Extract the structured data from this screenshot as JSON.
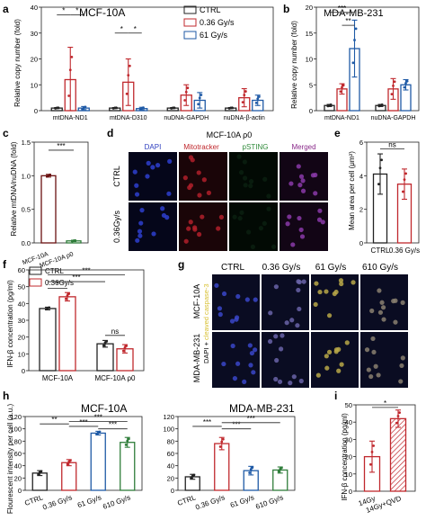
{
  "figure": {
    "panels": {
      "a": {
        "letter": "a",
        "title": "MCF-10A",
        "ylabel": "Relative copy number (fold)",
        "yticks": [
          "0",
          "10",
          "20",
          "30",
          "40"
        ]
      },
      "b": {
        "letter": "b",
        "title": "MDA-MB-231",
        "ylabel": "Relative copy number (fold)",
        "yticks": [
          "0",
          "5",
          "10",
          "15",
          "20"
        ]
      },
      "c": {
        "letter": "c",
        "ylabel": "Relative mtDNA/nuDNA (fold)",
        "yticks": [
          "0.0",
          "0.5",
          "1.0",
          "1.5"
        ]
      },
      "d": {
        "letter": "d",
        "header": "MCF-10A ρ0",
        "columns": [
          "DAPI",
          "Mitotracker",
          "pSTING",
          "Merged"
        ],
        "rows": [
          "CTRL",
          "0.36Gy/s"
        ]
      },
      "e": {
        "letter": "e",
        "ylabel": "Mean area per cell (μm²)",
        "yticks": [
          "0",
          "2",
          "4",
          "6"
        ]
      },
      "f": {
        "letter": "f",
        "ylabel": "IFN-β concentration (pg/ml)",
        "yticks": [
          "0",
          "10",
          "20",
          "30",
          "40",
          "50",
          "60"
        ]
      },
      "g": {
        "letter": "g",
        "columns": [
          "CTRL",
          "0.36 Gy/s",
          "61 Gy/s",
          "610 Gy/s"
        ],
        "rows": [
          "MCF-10A",
          "MDA-MB-231"
        ],
        "side_label_1": "DAPI + ",
        "side_label_2": "cleaved caspase-3"
      },
      "h": {
        "letter": "h",
        "ylabel": "Flourescent intensity per cell (a.u.)",
        "yticks": [
          "0",
          "20",
          "40",
          "60",
          "80",
          "100",
          "120"
        ],
        "sub1_title": "MCF-10A",
        "sub2_title": "MDA-MB-231"
      },
      "i": {
        "letter": "i",
        "ylabel": "IFN-β concentration (pg/ml)",
        "yticks": [
          "0",
          "10",
          "20",
          "30",
          "40",
          "50"
        ]
      }
    },
    "legend_a": [
      "CTRL",
      "0.36 Gy/s",
      "61 Gy/s"
    ],
    "legend_f": [
      "CTRL",
      "0.36Gy/s"
    ],
    "colors": {
      "ctrl": "#222222",
      "g036": "#c0282d",
      "g61": "#1f5aa6",
      "g610": "#2f7d3a",
      "hatch": "#c0282d"
    }
  },
  "chart_data": [
    {
      "panel": "a",
      "type": "bar",
      "categories": [
        "mtDNA-ND1",
        "mtDNA-D310",
        "nuDNA-GAPDH",
        "nuDNA-β-actin"
      ],
      "series": [
        {
          "name": "CTRL",
          "values": [
            1,
            1,
            1,
            1
          ],
          "errors": [
            0.2,
            0.2,
            0.2,
            0.2
          ]
        },
        {
          "name": "0.36 Gy/s",
          "values": [
            12,
            11,
            6,
            5
          ],
          "errors": [
            12.5,
            9,
            4,
            3.5
          ]
        },
        {
          "name": "61 Gy/s",
          "values": [
            1,
            0.8,
            4,
            4
          ],
          "errors": [
            0.6,
            0.5,
            3,
            2
          ]
        }
      ],
      "ylim": [
        0,
        40
      ],
      "significance": [
        "*",
        "*",
        "*",
        "*"
      ]
    },
    {
      "panel": "b",
      "type": "bar",
      "categories": [
        "mtDNA-ND1",
        "nuDNA-GAPDH"
      ],
      "series": [
        {
          "name": "CTRL",
          "values": [
            1,
            1
          ],
          "errors": [
            0.2,
            0.2
          ]
        },
        {
          "name": "0.36 Gy/s",
          "values": [
            4.2,
            4.2
          ],
          "errors": [
            1,
            2
          ]
        },
        {
          "name": "61 Gy/s",
          "values": [
            12,
            5
          ],
          "errors": [
            5.5,
            1
          ]
        }
      ],
      "ylim": [
        0,
        20
      ],
      "significance": [
        "***",
        "**"
      ]
    },
    {
      "panel": "c",
      "type": "bar",
      "categories": [
        "MCF-10A",
        "MCF-10A ρ0"
      ],
      "values": [
        1.0,
        0.03
      ],
      "errors": [
        0.02,
        0.01
      ],
      "ylim": [
        0,
        1.5
      ],
      "significance": [
        "***"
      ]
    },
    {
      "panel": "e",
      "type": "bar",
      "categories": [
        "CTRL",
        "0.36 Gy/s"
      ],
      "values": [
        4.1,
        3.5
      ],
      "errors": [
        1.2,
        0.9
      ],
      "ylim": [
        0,
        6
      ],
      "significance": [
        "ns"
      ]
    },
    {
      "panel": "f",
      "type": "bar",
      "categories": [
        "MCF-10A",
        "MCF-10A ρ0"
      ],
      "series": [
        {
          "name": "CTRL",
          "values": [
            37,
            16
          ],
          "errors": [
            0.8,
            2
          ]
        },
        {
          "name": "0.36Gy/s",
          "values": [
            44,
            13
          ],
          "errors": [
            2.5,
            2.5
          ]
        }
      ],
      "ylim": [
        0,
        60
      ],
      "significance": [
        "*",
        "***",
        "***",
        "ns"
      ]
    },
    {
      "panel": "h1",
      "type": "bar",
      "categories": [
        "CTRL",
        "0.36 Gy/s",
        "61 Gy/s",
        "610 Gy/s"
      ],
      "values": [
        28,
        45,
        93,
        78
      ],
      "errors": [
        4,
        5,
        3,
        8
      ],
      "ylim": [
        0,
        120
      ],
      "significance": [
        "**",
        "***",
        "***",
        "***"
      ]
    },
    {
      "panel": "h2",
      "type": "bar",
      "categories": [
        "CTRL",
        "0.36 Gy/s",
        "61 Gy/s",
        "610 Gy/s"
      ],
      "values": [
        22,
        76,
        32,
        33
      ],
      "errors": [
        4,
        10,
        7,
        5
      ],
      "ylim": [
        0,
        120
      ],
      "significance": [
        "***",
        "***",
        "***"
      ]
    },
    {
      "panel": "i",
      "type": "bar",
      "categories": [
        "14Gy",
        "14Gy+QVD"
      ],
      "values": [
        20,
        42
      ],
      "errors": [
        9,
        5
      ],
      "ylim": [
        0,
        50
      ],
      "significance": [
        "*"
      ]
    }
  ]
}
